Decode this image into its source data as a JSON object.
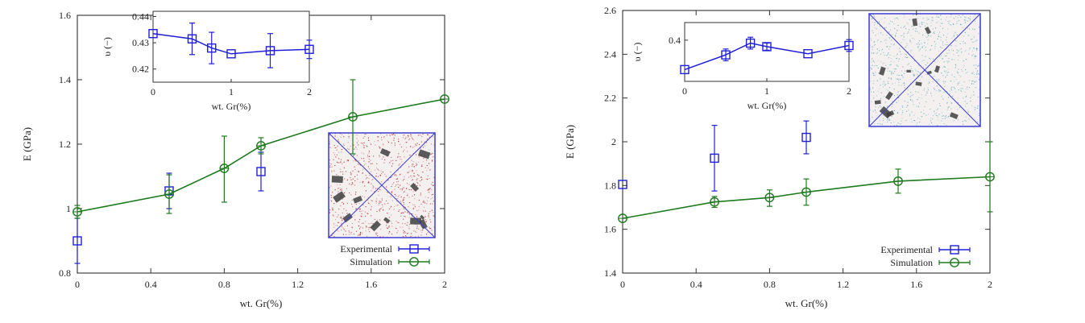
{
  "colors": {
    "experimental": "#1f1fd8",
    "simulation": "#1e7a1e",
    "frame": "#333333",
    "cube_left_particles": "#b02020",
    "cube_right_particles": "#5aa8b4",
    "cube_edges": "#3b3bd0",
    "flakes": "#404040"
  },
  "chart_data": [
    {
      "panel": "left",
      "type": "line",
      "xlabel": "wt. Gr(%)",
      "ylabel": "E  (GPa)",
      "xlim": [
        0,
        2
      ],
      "ylim": [
        0.8,
        1.6
      ],
      "xticks": [
        "0",
        "0.4",
        "0.8",
        "1.2",
        "1.6",
        "2"
      ],
      "yticks": [
        "0.8",
        "1",
        "1.2",
        "1.4",
        "1.6"
      ],
      "grid": false,
      "legend_position": "bottom-right",
      "series": [
        {
          "name": "Experimental",
          "marker": "square",
          "connected": false,
          "points": [
            {
              "x": 0,
              "y": 0.9,
              "err_lo": 0.83,
              "err_hi": 0.97
            },
            {
              "x": 0.5,
              "y": 1.055,
              "err_lo": 1.0,
              "err_hi": 1.11
            },
            {
              "x": 1.0,
              "y": 1.115,
              "err_lo": 1.055,
              "err_hi": 1.175
            }
          ]
        },
        {
          "name": "Simulation",
          "marker": "circle",
          "connected": true,
          "points": [
            {
              "x": 0,
              "y": 0.99,
              "err_lo": 0.97,
              "err_hi": 1.01
            },
            {
              "x": 0.5,
              "y": 1.045,
              "err_lo": 0.985,
              "err_hi": 1.105
            },
            {
              "x": 0.8,
              "y": 1.125,
              "err_lo": 1.02,
              "err_hi": 1.225
            },
            {
              "x": 1.0,
              "y": 1.195,
              "err_lo": 1.17,
              "err_hi": 1.22
            },
            {
              "x": 1.5,
              "y": 1.285,
              "err_lo": 1.17,
              "err_hi": 1.4
            },
            {
              "x": 2.0,
              "y": 1.34,
              "err_lo": 1.34,
              "err_hi": 1.34
            }
          ]
        }
      ],
      "inset": {
        "xlabel": "wt. Gr(%)",
        "ylabel": "υ (−)",
        "xlim": [
          0,
          2
        ],
        "ylim": [
          0.415,
          0.442
        ],
        "xticks": [
          "0",
          "1",
          "2"
        ],
        "yticks": [
          "0.42",
          "0.43",
          "0.44"
        ],
        "points": [
          {
            "x": 0,
            "y": 0.4335,
            "err_lo": 0.4335,
            "err_hi": 0.4335
          },
          {
            "x": 0.5,
            "y": 0.4315,
            "err_lo": 0.4255,
            "err_hi": 0.4375
          },
          {
            "x": 0.75,
            "y": 0.428,
            "err_lo": 0.422,
            "err_hi": 0.434
          },
          {
            "x": 1.0,
            "y": 0.4258,
            "err_lo": 0.4258,
            "err_hi": 0.4258
          },
          {
            "x": 1.5,
            "y": 0.427,
            "err_lo": 0.4205,
            "err_hi": 0.4335
          },
          {
            "x": 2.0,
            "y": 0.4275,
            "err_lo": 0.424,
            "err_hi": 0.431
          }
        ]
      }
    },
    {
      "panel": "right",
      "type": "line",
      "xlabel": "wt. Gr(%)",
      "ylabel": "E  (GPa)",
      "xlim": [
        0,
        2
      ],
      "ylim": [
        1.4,
        2.6
      ],
      "xticks": [
        "0",
        "0.4",
        "0.8",
        "1.2",
        "1.6",
        "2"
      ],
      "yticks": [
        "1.4",
        "1.6",
        "1.8",
        "2",
        "2.2",
        "2.4",
        "2.6"
      ],
      "grid": false,
      "legend_position": "bottom-right",
      "series": [
        {
          "name": "Experimental",
          "marker": "square",
          "connected": false,
          "points": [
            {
              "x": 0,
              "y": 1.805,
              "err_lo": 1.805,
              "err_hi": 1.805
            },
            {
              "x": 0.5,
              "y": 1.925,
              "err_lo": 1.775,
              "err_hi": 2.075
            },
            {
              "x": 1.0,
              "y": 2.02,
              "err_lo": 1.945,
              "err_hi": 2.095
            }
          ]
        },
        {
          "name": "Simulation",
          "marker": "circle",
          "connected": true,
          "points": [
            {
              "x": 0,
              "y": 1.65,
              "err_lo": 1.65,
              "err_hi": 1.65
            },
            {
              "x": 0.5,
              "y": 1.725,
              "err_lo": 1.7,
              "err_hi": 1.75
            },
            {
              "x": 0.8,
              "y": 1.745,
              "err_lo": 1.705,
              "err_hi": 1.78
            },
            {
              "x": 1.0,
              "y": 1.77,
              "err_lo": 1.71,
              "err_hi": 1.83
            },
            {
              "x": 1.5,
              "y": 1.82,
              "err_lo": 1.765,
              "err_hi": 1.875
            },
            {
              "x": 2.0,
              "y": 1.84,
              "err_lo": 1.68,
              "err_hi": 2.0
            }
          ]
        }
      ],
      "inset": {
        "xlabel": "wt. Gr(%)",
        "ylabel": "υ (−)",
        "xlim": [
          0,
          2
        ],
        "ylim": [
          0.365,
          0.415
        ],
        "xticks": [
          "0",
          "1",
          "2"
        ],
        "yticks": [
          "0.4"
        ],
        "points": [
          {
            "x": 0,
            "y": 0.375,
            "err_lo": 0.375,
            "err_hi": 0.375
          },
          {
            "x": 0.5,
            "y": 0.3875,
            "err_lo": 0.3825,
            "err_hi": 0.3925
          },
          {
            "x": 0.8,
            "y": 0.3975,
            "err_lo": 0.3925,
            "err_hi": 0.4025
          },
          {
            "x": 1.0,
            "y": 0.3945,
            "err_lo": 0.3915,
            "err_hi": 0.3975
          },
          {
            "x": 1.5,
            "y": 0.3885,
            "err_lo": 0.3885,
            "err_hi": 0.3885
          },
          {
            "x": 2.0,
            "y": 0.3955,
            "err_lo": 0.3905,
            "err_hi": 0.4005
          }
        ]
      }
    }
  ]
}
